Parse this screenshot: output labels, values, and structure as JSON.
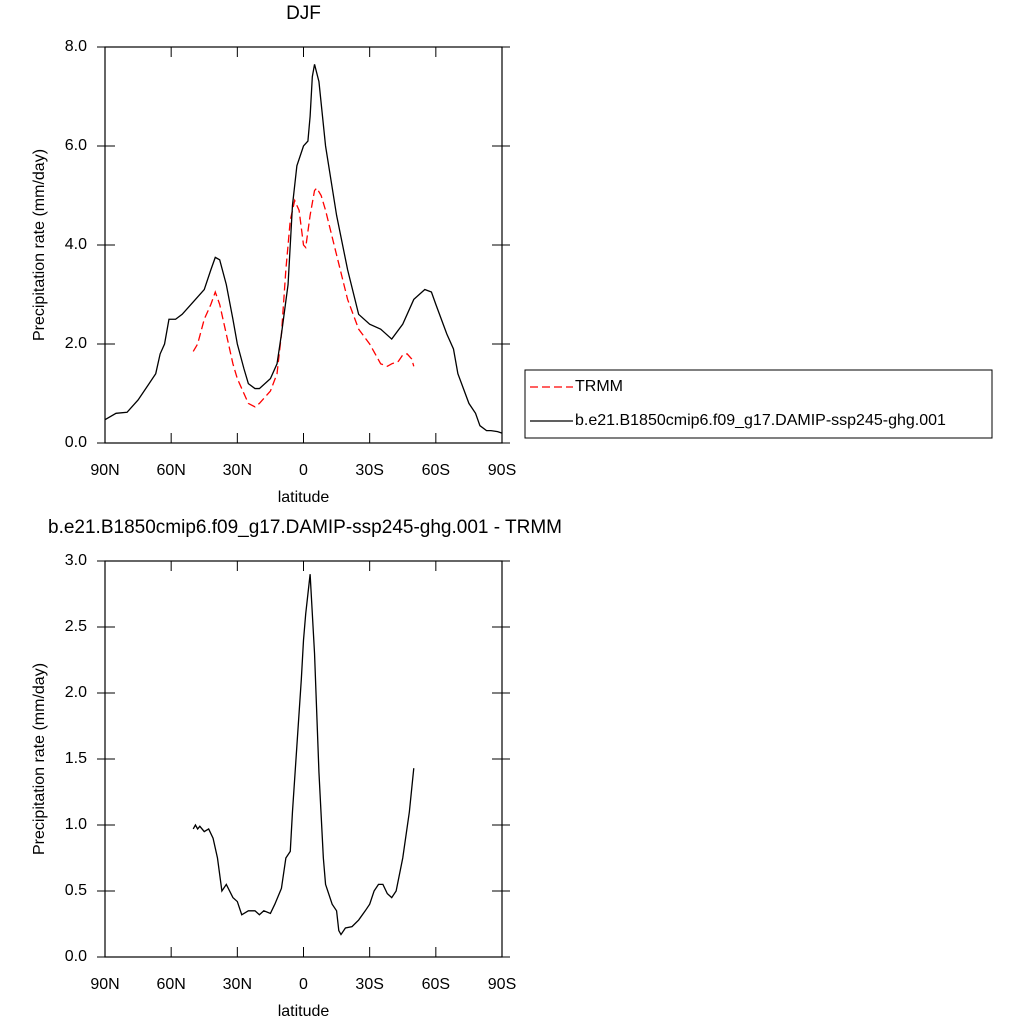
{
  "chart_data": [
    {
      "type": "line",
      "title": "DJF",
      "xlabel": "latitude",
      "ylabel": "Precipitation rate (mm/day)",
      "xlim": [
        90,
        -90
      ],
      "ylim": [
        0,
        8
      ],
      "xticks": [
        {
          "value": 90,
          "label": "90N"
        },
        {
          "value": 60,
          "label": "60N"
        },
        {
          "value": 30,
          "label": "30N"
        },
        0,
        {
          "value": -30,
          "label": "30S"
        },
        {
          "value": -60,
          "label": "60S"
        },
        {
          "value": -90,
          "label": "90S"
        }
      ],
      "yticks": [
        {
          "value": 0,
          "label": "0.0"
        },
        {
          "value": 2,
          "label": "2.0"
        },
        {
          "value": 4,
          "label": "4.0"
        },
        {
          "value": 6,
          "label": "6.0"
        },
        {
          "value": 8,
          "label": "8.0"
        }
      ],
      "legend": "right",
      "series": [
        {
          "name": "TRMM",
          "color": "#ff0000",
          "dash": true,
          "x": [
            50,
            48,
            45,
            42,
            40,
            38,
            35,
            32,
            30,
            27,
            25,
            22,
            20,
            17,
            15,
            12,
            10,
            8,
            6,
            4,
            2,
            0,
            -1,
            -3,
            -5,
            -6,
            -8,
            -10,
            -15,
            -20,
            -25,
            -30,
            -35,
            -38,
            -40,
            -43,
            -45,
            -47,
            -49,
            -50
          ],
          "values": [
            1.85,
            2.0,
            2.5,
            2.8,
            3.05,
            2.8,
            2.2,
            1.6,
            1.3,
            1.0,
            0.8,
            0.73,
            0.8,
            0.95,
            1.05,
            1.4,
            2.2,
            3.5,
            4.5,
            4.9,
            4.7,
            4.0,
            3.95,
            4.6,
            5.1,
            5.15,
            5.0,
            4.7,
            3.8,
            2.9,
            2.3,
            2.0,
            1.6,
            1.55,
            1.6,
            1.65,
            1.78,
            1.8,
            1.7,
            1.55
          ]
        },
        {
          "name": "b.e21.B1850cmip6.f09_g17.DAMIP-ssp245-ghg.001",
          "color": "#000000",
          "dash": false,
          "x": [
            90,
            85,
            80,
            75,
            70,
            67,
            65,
            63,
            61,
            58,
            55,
            50,
            45,
            42,
            40,
            38,
            35,
            32,
            30,
            27,
            25,
            22,
            20,
            15,
            12,
            10,
            7,
            5,
            3,
            0,
            -2,
            -3,
            -4,
            -5,
            -7,
            -10,
            -15,
            -20,
            -25,
            -30,
            -35,
            -40,
            -45,
            -50,
            -55,
            -58,
            -60,
            -65,
            -68,
            -70,
            -75,
            -78,
            -80,
            -83,
            -85,
            -88,
            -90
          ],
          "values": [
            0.47,
            0.6,
            0.62,
            0.87,
            1.2,
            1.4,
            1.8,
            2.0,
            2.5,
            2.5,
            2.6,
            2.85,
            3.1,
            3.5,
            3.75,
            3.7,
            3.2,
            2.5,
            2.0,
            1.5,
            1.2,
            1.1,
            1.1,
            1.3,
            1.6,
            2.2,
            3.2,
            4.8,
            5.6,
            6.0,
            6.1,
            6.6,
            7.4,
            7.65,
            7.3,
            6.0,
            4.6,
            3.5,
            2.6,
            2.4,
            2.3,
            2.1,
            2.4,
            2.9,
            3.1,
            3.05,
            2.8,
            2.2,
            1.9,
            1.4,
            0.8,
            0.6,
            0.35,
            0.25,
            0.25,
            0.23,
            0.2
          ]
        }
      ]
    },
    {
      "type": "line",
      "title": "b.e21.B1850cmip6.f09_g17.DAMIP-ssp245-ghg.001 - TRMM",
      "xlabel": "latitude",
      "ylabel": "Precipitation rate (mm/day)",
      "xlim": [
        90,
        -90
      ],
      "ylim": [
        0,
        3
      ],
      "xticks": [
        {
          "value": 90,
          "label": "90N"
        },
        {
          "value": 60,
          "label": "60N"
        },
        {
          "value": 30,
          "label": "30N"
        },
        0,
        {
          "value": -30,
          "label": "30S"
        },
        {
          "value": -60,
          "label": "60S"
        },
        {
          "value": -90,
          "label": "90S"
        }
      ],
      "yticks": [
        {
          "value": 0,
          "label": "0.0"
        },
        0.5,
        {
          "value": 1,
          "label": "1.0"
        },
        1.5,
        {
          "value": 2,
          "label": "2.0"
        },
        2.5,
        {
          "value": 3,
          "label": "3.0"
        }
      ],
      "series": [
        {
          "color": "#000000",
          "dash": false,
          "x": [
            50,
            49,
            48,
            47,
            45,
            43,
            41,
            39,
            37,
            35,
            32,
            30,
            28,
            25,
            22,
            20,
            18,
            15,
            13,
            10,
            8,
            6,
            5,
            3,
            1,
            0,
            -1,
            -2,
            -3,
            -5,
            -7,
            -9,
            -10,
            -13,
            -15,
            -16,
            -17,
            -19,
            -22,
            -25,
            -28,
            -30,
            -32,
            -34,
            -36,
            -38,
            -40,
            -42,
            -45,
            -48,
            -50
          ],
          "values": [
            0.97,
            1.0,
            0.97,
            0.99,
            0.95,
            0.97,
            0.9,
            0.75,
            0.5,
            0.55,
            0.45,
            0.42,
            0.32,
            0.35,
            0.35,
            0.32,
            0.35,
            0.33,
            0.4,
            0.52,
            0.75,
            0.8,
            1.1,
            1.6,
            2.1,
            2.4,
            2.6,
            2.75,
            2.9,
            2.3,
            1.4,
            0.75,
            0.55,
            0.4,
            0.35,
            0.2,
            0.17,
            0.22,
            0.23,
            0.28,
            0.35,
            0.4,
            0.5,
            0.55,
            0.55,
            0.48,
            0.45,
            0.5,
            0.75,
            1.1,
            1.43
          ]
        }
      ]
    }
  ]
}
